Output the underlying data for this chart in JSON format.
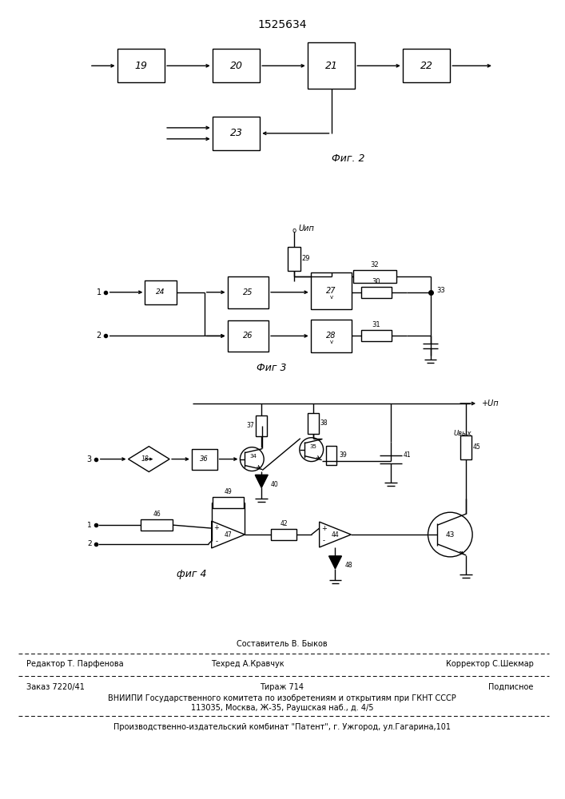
{
  "title": "1525634",
  "bg_color": "#ffffff",
  "footer": {
    "composer": "Составитель В. Быков",
    "editor": "Редактор Т. Парфенова",
    "tech": "Техред А.Кравчук",
    "corrector": "Корректор С.Шекмар",
    "order": "Заказ 7220/41",
    "tirazh": "Тираж 714",
    "podpisnoe": "Подписное",
    "vniip1": "ВНИИПИ Государственного комитета по изобретениям и открытиям при ГКНТ СССР",
    "vniip2": "113035, Москва, Ж-35, Раушская наб., д. 4/5",
    "patent": "Производственно-издательский комбинат \"Патент\", г. Ужгород, ул.Гагарина,101"
  }
}
